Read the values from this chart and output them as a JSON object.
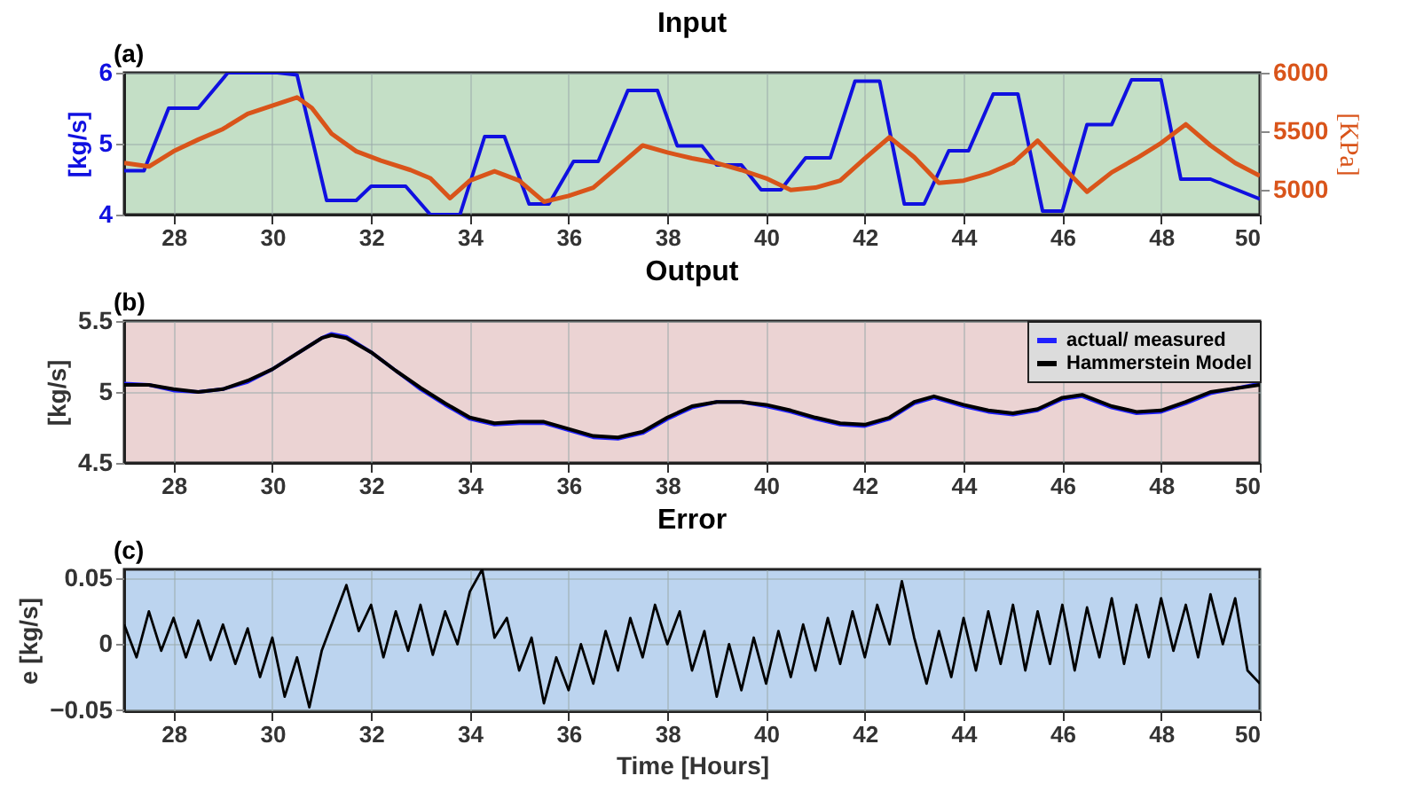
{
  "chart_data": [
    {
      "type": "line",
      "title": "Input",
      "annotations": [
        "(a)"
      ],
      "ylabel": "[kg/s]",
      "y2label": "[KPa]",
      "xlim": [
        27,
        50
      ],
      "xticks": [
        28,
        30,
        32,
        34,
        36,
        38,
        40,
        42,
        44,
        46,
        48,
        50
      ],
      "ylim": [
        4,
        6
      ],
      "yticks": [
        4,
        5,
        6
      ],
      "y2lim": [
        4790,
        6000
      ],
      "y2ticks": [
        5000,
        5500,
        6000
      ],
      "grid": true,
      "series": [
        {
          "color": "#1010e0",
          "x": [
            27,
            27.4,
            27.9,
            28.5,
            29.1,
            30.1,
            30.5,
            31.1,
            31.7,
            32,
            32.7,
            33.2,
            33.8,
            34.3,
            34.7,
            35.2,
            35.6,
            36.1,
            36.6,
            37.2,
            37.8,
            38.2,
            38.7,
            39,
            39.5,
            39.9,
            40.3,
            40.8,
            41.3,
            41.8,
            42.3,
            42.8,
            43.2,
            43.7,
            44.1,
            44.6,
            45.1,
            45.6,
            46,
            46.5,
            47,
            47.4,
            48,
            48.4,
            49,
            50
          ],
          "values": [
            4.62,
            4.62,
            5.5,
            5.5,
            6,
            6,
            5.97,
            4.2,
            4.2,
            4.4,
            4.4,
            4.0,
            4.0,
            5.1,
            5.1,
            4.15,
            4.15,
            4.75,
            4.75,
            5.75,
            5.75,
            4.97,
            4.97,
            4.7,
            4.7,
            4.35,
            4.35,
            4.8,
            4.8,
            5.88,
            5.88,
            4.15,
            4.15,
            4.9,
            4.9,
            5.7,
            5.7,
            4.05,
            4.05,
            5.27,
            5.27,
            5.9,
            5.9,
            4.5,
            4.5,
            4.22
          ]
        },
        {
          "color": "#d9541a",
          "axis": "y2",
          "x": [
            27,
            27.5,
            28,
            28.5,
            29,
            29.5,
            30,
            30.5,
            30.8,
            31.2,
            31.7,
            32.2,
            32.8,
            33.2,
            33.6,
            34,
            34.5,
            35,
            35.5,
            36,
            36.5,
            37,
            37.5,
            38,
            38.5,
            39,
            39.5,
            40,
            40.5,
            41,
            41.5,
            42,
            42.5,
            43,
            43.5,
            44,
            44.5,
            45,
            45.5,
            46,
            46.5,
            47,
            47.5,
            48,
            48.5,
            49,
            49.5,
            50
          ],
          "values": [
            5230,
            5200,
            5330,
            5430,
            5520,
            5650,
            5720,
            5790,
            5700,
            5480,
            5330,
            5250,
            5170,
            5100,
            4930,
            5080,
            5160,
            5080,
            4900,
            4950,
            5020,
            5200,
            5380,
            5320,
            5270,
            5230,
            5170,
            5100,
            5000,
            5020,
            5080,
            5270,
            5450,
            5280,
            5060,
            5080,
            5140,
            5230,
            5420,
            5200,
            4985,
            5150,
            5270,
            5400,
            5560,
            5380,
            5230,
            5120
          ]
        }
      ]
    },
    {
      "type": "line",
      "title": "Output",
      "annotations": [
        "(b)"
      ],
      "ylabel": "[kg/s]",
      "xlim": [
        27,
        50
      ],
      "xticks": [
        28,
        30,
        32,
        34,
        36,
        38,
        40,
        42,
        44,
        46,
        48,
        50
      ],
      "ylim": [
        4.5,
        5.5
      ],
      "yticks": [
        4.5,
        5,
        5.5
      ],
      "grid": true,
      "legend": "top right",
      "x": [
        27,
        27.5,
        28,
        28.5,
        29,
        29.5,
        30,
        30.5,
        31,
        31.2,
        31.5,
        32,
        32.5,
        33,
        33.5,
        34,
        34.5,
        35,
        35.5,
        36,
        36.5,
        37,
        37.5,
        38,
        38.5,
        39,
        39.5,
        40,
        40.5,
        41,
        41.5,
        42,
        42.5,
        43,
        43.4,
        44,
        44.5,
        45,
        45.5,
        46,
        46.4,
        47,
        47.5,
        48,
        48.5,
        49,
        50
      ],
      "series": [
        {
          "name": "actual/ measured",
          "color": "#2020ff",
          "values": [
            5.06,
            5.05,
            5.01,
            5.0,
            5.02,
            5.07,
            5.16,
            5.27,
            5.38,
            5.41,
            5.39,
            5.28,
            5.15,
            5.02,
            4.91,
            4.81,
            4.77,
            4.78,
            4.78,
            4.73,
            4.68,
            4.67,
            4.71,
            4.81,
            4.89,
            4.93,
            4.93,
            4.9,
            4.86,
            4.81,
            4.77,
            4.76,
            4.81,
            4.92,
            4.96,
            4.9,
            4.86,
            4.84,
            4.87,
            4.95,
            4.97,
            4.89,
            4.85,
            4.86,
            4.92,
            4.99,
            5.06
          ]
        },
        {
          "name": "Hammerstein Model",
          "color": "#000000",
          "values": [
            5.05,
            5.05,
            5.02,
            5.0,
            5.02,
            5.08,
            5.16,
            5.27,
            5.38,
            5.4,
            5.38,
            5.28,
            5.15,
            5.03,
            4.92,
            4.82,
            4.78,
            4.79,
            4.79,
            4.74,
            4.69,
            4.68,
            4.72,
            4.82,
            4.9,
            4.93,
            4.93,
            4.91,
            4.87,
            4.82,
            4.78,
            4.77,
            4.82,
            4.93,
            4.97,
            4.91,
            4.87,
            4.85,
            4.88,
            4.96,
            4.98,
            4.9,
            4.86,
            4.87,
            4.93,
            5.0,
            5.05
          ]
        }
      ]
    },
    {
      "type": "line",
      "title": "Error",
      "annotations": [
        "(c)"
      ],
      "xlabel": "Time [Hours]",
      "ylabel": "e [kg/s]",
      "xlim": [
        27,
        50
      ],
      "xticks": [
        28,
        30,
        32,
        34,
        36,
        38,
        40,
        42,
        44,
        46,
        48,
        50
      ],
      "ylim": [
        -0.051,
        0.057
      ],
      "yticks": [
        -0.05,
        0,
        0.05
      ],
      "grid": true,
      "x": [
        27,
        27.25,
        27.5,
        27.75,
        28,
        28.25,
        28.5,
        28.75,
        29,
        29.25,
        29.5,
        29.75,
        30,
        30.25,
        30.5,
        30.75,
        31,
        31.25,
        31.5,
        31.75,
        32,
        32.25,
        32.5,
        32.75,
        33,
        33.25,
        33.5,
        33.75,
        34,
        34.25,
        34.5,
        34.75,
        35,
        35.25,
        35.5,
        35.75,
        36,
        36.25,
        36.5,
        36.75,
        37,
        37.25,
        37.5,
        37.75,
        38,
        38.25,
        38.5,
        38.75,
        39,
        39.25,
        39.5,
        39.75,
        40,
        40.25,
        40.5,
        40.75,
        41,
        41.25,
        41.5,
        41.75,
        42,
        42.25,
        42.5,
        42.75,
        43,
        43.25,
        43.5,
        43.75,
        44,
        44.25,
        44.5,
        44.75,
        45,
        45.25,
        45.5,
        45.75,
        46,
        46.25,
        46.5,
        46.75,
        47,
        47.25,
        47.5,
        47.75,
        48,
        48.25,
        48.5,
        48.75,
        49,
        49.25,
        49.5,
        49.75,
        50
      ],
      "series": [
        {
          "color": "#000000",
          "values": [
            0.015,
            -0.01,
            0.025,
            -0.005,
            0.02,
            -0.01,
            0.018,
            -0.012,
            0.015,
            -0.015,
            0.012,
            -0.025,
            0.005,
            -0.04,
            -0.01,
            -0.048,
            -0.005,
            0.02,
            0.045,
            0.01,
            0.03,
            -0.01,
            0.025,
            -0.005,
            0.03,
            -0.008,
            0.025,
            0.0,
            0.04,
            0.057,
            0.005,
            0.02,
            -0.02,
            0.005,
            -0.045,
            -0.01,
            -0.035,
            0.0,
            -0.03,
            0.01,
            -0.02,
            0.02,
            -0.01,
            0.03,
            0.0,
            0.025,
            -0.02,
            0.01,
            -0.04,
            0.0,
            -0.035,
            0.005,
            -0.03,
            0.01,
            -0.025,
            0.015,
            -0.02,
            0.02,
            -0.015,
            0.025,
            -0.01,
            0.03,
            0.0,
            0.048,
            0.005,
            -0.03,
            0.01,
            -0.025,
            0.02,
            -0.02,
            0.025,
            -0.015,
            0.03,
            -0.02,
            0.025,
            -0.015,
            0.03,
            -0.02,
            0.028,
            -0.01,
            0.035,
            -0.015,
            0.03,
            -0.01,
            0.035,
            -0.005,
            0.03,
            -0.01,
            0.038,
            0.0,
            0.035,
            -0.02,
            -0.03
          ]
        }
      ]
    }
  ]
}
